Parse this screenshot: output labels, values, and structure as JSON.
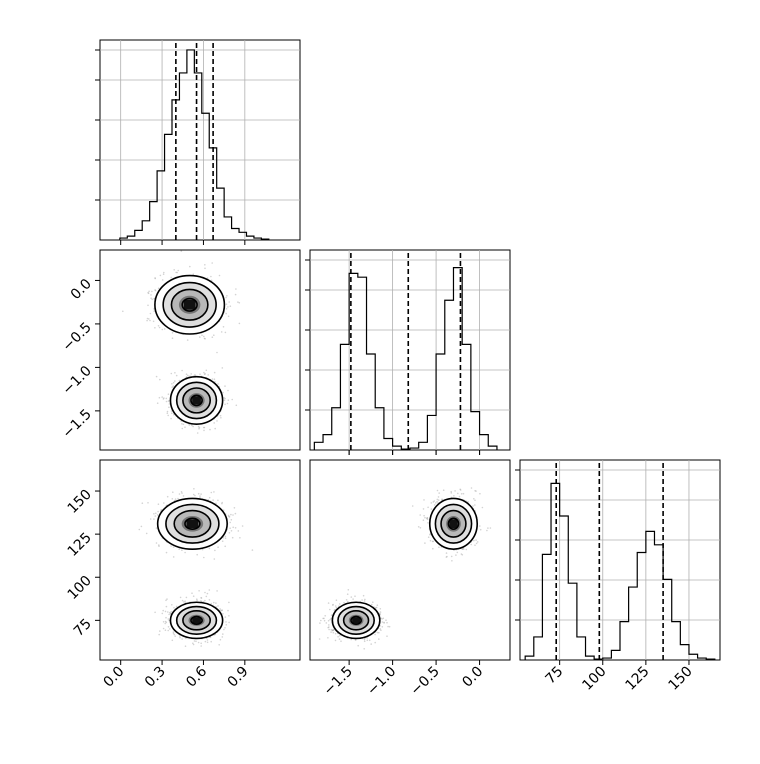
{
  "chart_data": {
    "type": "corner",
    "parameters": [
      {
        "axis_range": [
          -0.15,
          1.3
        ],
        "ticks": [
          "0.0",
          "0.3",
          "0.6",
          "0.9"
        ],
        "tick_values": [
          0.0,
          0.3,
          0.6,
          0.9
        ]
      },
      {
        "axis_range": [
          -1.95,
          0.35
        ],
        "ticks": [
          "0.0",
          "−0.5",
          "−1.0",
          "−1.5"
        ],
        "tick_values": [
          0.0,
          -0.5,
          -1.0,
          -1.5
        ],
        "x_ticks": [
          "−1.5",
          "−1.0",
          "−0.5",
          "0.0"
        ],
        "x_tick_values": [
          -1.5,
          -1.0,
          -0.5,
          0.0
        ]
      },
      {
        "axis_range": [
          52,
          168
        ],
        "ticks": [
          "150",
          "125",
          "100",
          "75"
        ],
        "tick_values": [
          150,
          125,
          100,
          75
        ],
        "x_ticks": [
          "75",
          "100",
          "125",
          "150"
        ],
        "x_tick_values": [
          75,
          100,
          125,
          150
        ]
      }
    ],
    "histograms": [
      {
        "parameter": 0,
        "bin_edges": [
          -0.006,
          0.048,
          0.102,
          0.156,
          0.21,
          0.264,
          0.318,
          0.372,
          0.426,
          0.48,
          0.534,
          0.588,
          0.642,
          0.696,
          0.75,
          0.804,
          0.858,
          0.912,
          0.966,
          1.02,
          1.074
        ],
        "counts": [
          0.01,
          0.02,
          0.05,
          0.1,
          0.2,
          0.36,
          0.55,
          0.73,
          0.87,
          0.99,
          0.87,
          0.66,
          0.48,
          0.27,
          0.12,
          0.06,
          0.04,
          0.02,
          0.01,
          0.005
        ],
        "quantiles": [
          0.4,
          0.55,
          0.67
        ]
      },
      {
        "parameter": 1,
        "bin_edges": [
          -1.9,
          -1.8,
          -1.7,
          -1.6,
          -1.5,
          -1.4,
          -1.3,
          -1.2,
          -1.1,
          -1.0,
          -0.9,
          -0.8,
          -0.7,
          -0.6,
          -0.5,
          -0.4,
          -0.3,
          -0.2,
          -0.1,
          0.0,
          0.1,
          0.2
        ],
        "counts": [
          0.04,
          0.08,
          0.22,
          0.55,
          0.92,
          0.9,
          0.5,
          0.22,
          0.06,
          0.02,
          0.005,
          0.01,
          0.04,
          0.18,
          0.5,
          0.78,
          0.95,
          0.55,
          0.2,
          0.08,
          0.02
        ],
        "quantiles": [
          -1.48,
          -0.82,
          -0.22
        ]
      },
      {
        "parameter": 2,
        "bin_edges": [
          55,
          60,
          65,
          70,
          75,
          80,
          85,
          90,
          95,
          100,
          105,
          110,
          115,
          120,
          125,
          130,
          135,
          140,
          145,
          150,
          155,
          160,
          165
        ],
        "counts": [
          0.02,
          0.12,
          0.55,
          0.92,
          0.75,
          0.4,
          0.12,
          0.02,
          0.005,
          0.01,
          0.05,
          0.2,
          0.38,
          0.56,
          0.67,
          0.6,
          0.42,
          0.2,
          0.08,
          0.03,
          0.01,
          0.005
        ],
        "quantiles": [
          73,
          98,
          135
        ]
      }
    ],
    "scatter_clusters": {
      "p1_vs_p0": [
        {
          "center": [
            0.5,
            -0.28
          ],
          "spread": [
            0.12,
            0.16
          ],
          "weight": 0.5
        },
        {
          "center": [
            0.55,
            -1.38
          ],
          "spread": [
            0.09,
            0.13
          ],
          "weight": 0.5
        }
      ],
      "p2_vs_p0": [
        {
          "center": [
            0.52,
            131
          ],
          "spread": [
            0.12,
            7
          ],
          "weight": 0.5
        },
        {
          "center": [
            0.55,
            75
          ],
          "spread": [
            0.09,
            5
          ],
          "weight": 0.5
        }
      ],
      "p2_vs_p1": [
        {
          "center": [
            -0.3,
            131
          ],
          "spread": [
            0.13,
            7
          ],
          "weight": 0.5
        },
        {
          "center": [
            -1.42,
            75
          ],
          "spread": [
            0.13,
            5
          ],
          "weight": 0.5
        }
      ]
    },
    "grid": true,
    "colors": {
      "line": "#000000",
      "sample_points": "#9e9e9e",
      "density_light": "#d0d0d0",
      "density_dark": "#111111",
      "grid": "#b0b0b0"
    }
  }
}
